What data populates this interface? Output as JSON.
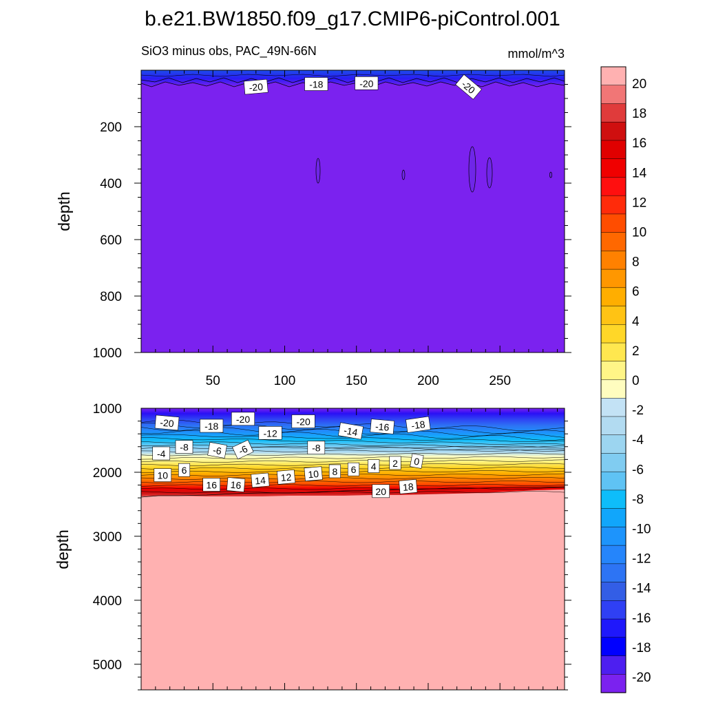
{
  "figure": {
    "title": "b.e21.BW1850.f09_g17.CMIP6-piControl.001",
    "subtitle_left": "SiO3 minus obs, PAC_49N-66N",
    "subtitle_right": "mmol/m^3"
  },
  "chart_data": [
    {
      "type": "contour",
      "panel": "upper",
      "ylabel": "depth",
      "xlim": [
        0,
        295
      ],
      "ylim": [
        1000,
        0
      ],
      "y_inverted": true,
      "x_ticks": [
        50,
        100,
        150,
        200,
        250
      ],
      "y_ticks": [
        200,
        400,
        600,
        800,
        1000
      ],
      "fill_value": "< -20",
      "contour_labels": [
        {
          "x": 80,
          "depth": 60,
          "text": "-20",
          "angle": -5
        },
        {
          "x": 122,
          "depth": 50,
          "text": "-18",
          "angle": 0
        },
        {
          "x": 157,
          "depth": 47,
          "text": "-20",
          "angle": 0
        },
        {
          "x": 228,
          "depth": 60,
          "text": "-20",
          "angle": 40
        }
      ]
    },
    {
      "type": "contour",
      "panel": "lower",
      "ylabel": "depth",
      "xlim": [
        0,
        295
      ],
      "ylim": [
        5400,
        1000
      ],
      "y_inverted": true,
      "y_ticks": [
        1000,
        2000,
        3000,
        4000,
        5000
      ],
      "fill_value_below_2350": "> 20",
      "contour_labels": [
        {
          "x": 18,
          "depth": 1230,
          "text": "-20",
          "angle": 5
        },
        {
          "x": 49,
          "depth": 1280,
          "text": "-18",
          "angle": 0
        },
        {
          "x": 71,
          "depth": 1170,
          "text": "-20",
          "angle": 0
        },
        {
          "x": 90,
          "depth": 1390,
          "text": "-12",
          "angle": 0
        },
        {
          "x": 113,
          "depth": 1210,
          "text": "-20",
          "angle": 0
        },
        {
          "x": 146,
          "depth": 1360,
          "text": "-14",
          "angle": 10
        },
        {
          "x": 168,
          "depth": 1290,
          "text": "-16",
          "angle": 5
        },
        {
          "x": 193,
          "depth": 1260,
          "text": "-18",
          "angle": -8
        },
        {
          "x": 14,
          "depth": 1710,
          "text": "-4",
          "angle": 0
        },
        {
          "x": 30,
          "depth": 1610,
          "text": "-8",
          "angle": 0
        },
        {
          "x": 53,
          "depth": 1660,
          "text": "-6",
          "angle": 10
        },
        {
          "x": 71,
          "depth": 1650,
          "text": "-6",
          "angle": -25
        },
        {
          "x": 122,
          "depth": 1620,
          "text": "-8",
          "angle": 0
        },
        {
          "x": 15,
          "depth": 2050,
          "text": "10",
          "angle": 0
        },
        {
          "x": 30,
          "depth": 1970,
          "text": "6",
          "angle": 0
        },
        {
          "x": 49,
          "depth": 2200,
          "text": "16",
          "angle": 0
        },
        {
          "x": 66,
          "depth": 2200,
          "text": "16",
          "angle": 5
        },
        {
          "x": 83,
          "depth": 2130,
          "text": "14",
          "angle": -5
        },
        {
          "x": 101,
          "depth": 2080,
          "text": "12",
          "angle": -5
        },
        {
          "x": 120,
          "depth": 2030,
          "text": "10",
          "angle": -5
        },
        {
          "x": 135,
          "depth": 1990,
          "text": "8",
          "angle": 0
        },
        {
          "x": 148,
          "depth": 1960,
          "text": "6",
          "angle": 0
        },
        {
          "x": 162,
          "depth": 1910,
          "text": "4",
          "angle": 0
        },
        {
          "x": 177,
          "depth": 1860,
          "text": "2",
          "angle": 0
        },
        {
          "x": 192,
          "depth": 1830,
          "text": "0",
          "angle": 10
        },
        {
          "x": 167,
          "depth": 2300,
          "text": "20",
          "angle": 0
        },
        {
          "x": 186,
          "depth": 2230,
          "text": "18",
          "angle": -5
        }
      ]
    }
  ],
  "colorbar": {
    "labels": [
      "20",
      "18",
      "16",
      "14",
      "12",
      "10",
      "8",
      "6",
      "4",
      "2",
      "0",
      "-2",
      "-4",
      "-6",
      "-8",
      "-10",
      "-12",
      "-14",
      "-16",
      "-18",
      "-20"
    ],
    "colors": [
      "#ffb1b1",
      "#f17676",
      "#e03b3b",
      "#cf0f0f",
      "#e00000",
      "#f00000",
      "#ff0f0f",
      "#ff2b0a",
      "#ff4d00",
      "#ff6800",
      "#ff8100",
      "#ff9700",
      "#ffae00",
      "#ffc314",
      "#ffd728",
      "#ffe74f",
      "#fff587",
      "#fffdbf",
      "#c3e2f5",
      "#b2dbf1",
      "#9cd5f0",
      "#80ccf1",
      "#5fc3f4",
      "#0ebdfa",
      "#11a6fb",
      "#1d94fc",
      "#2585fb",
      "#2d74f4",
      "#335ee6",
      "#2f40f4",
      "#1f18fb",
      "#0000ff",
      "#4d1ff0",
      "#7b22ef"
    ]
  }
}
